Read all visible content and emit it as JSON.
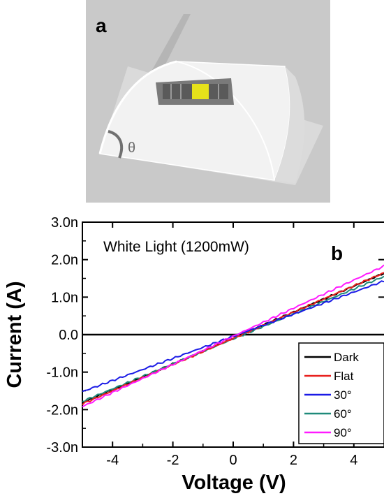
{
  "panel_a": {
    "label": "a",
    "angle_symbol": "θ",
    "colors": {
      "background": "#c8c8c8",
      "substrate": "#efefef",
      "device_frame": "#7a7a7a",
      "electrode_dark": "#5a5a5a",
      "active_layer": "#e6e21a"
    }
  },
  "chart_data": {
    "type": "line",
    "panel_label": "b",
    "annotation": "White Light (1200mW)",
    "xlabel": "Voltage (V)",
    "ylabel": "Current (A)",
    "xlim": [
      -5,
      5
    ],
    "ylim": [
      -3.0,
      3.0
    ],
    "x_ticks": [
      -4,
      -2,
      0,
      2,
      4
    ],
    "x_tick_labels": [
      "-4",
      "-2",
      "0",
      "2",
      "4"
    ],
    "y_ticks": [
      3.0,
      2.0,
      1.0,
      0.0,
      -1.0,
      -2.0,
      -3.0
    ],
    "y_tick_labels": [
      "3.0n",
      "2.0n",
      "1.0n",
      "0.0",
      "-1.0n",
      "-2.0n",
      "-3.0n"
    ],
    "grid": false,
    "legend_position": "bottom-right",
    "x": [
      -5,
      5
    ],
    "series": [
      {
        "name": "Dark",
        "color": "#000000",
        "values": [
          -1.82,
          1.64
        ]
      },
      {
        "name": "Flat",
        "color": "#e8201e",
        "values": [
          -1.85,
          1.65
        ]
      },
      {
        "name": "30°",
        "color": "#1a1ae6",
        "values": [
          -1.52,
          1.43
        ]
      },
      {
        "name": "60°",
        "color": "#1f8a7a",
        "values": [
          -1.78,
          1.55
        ]
      },
      {
        "name": "90°",
        "color": "#ff1aff",
        "values": [
          -1.92,
          1.83
        ]
      }
    ]
  }
}
